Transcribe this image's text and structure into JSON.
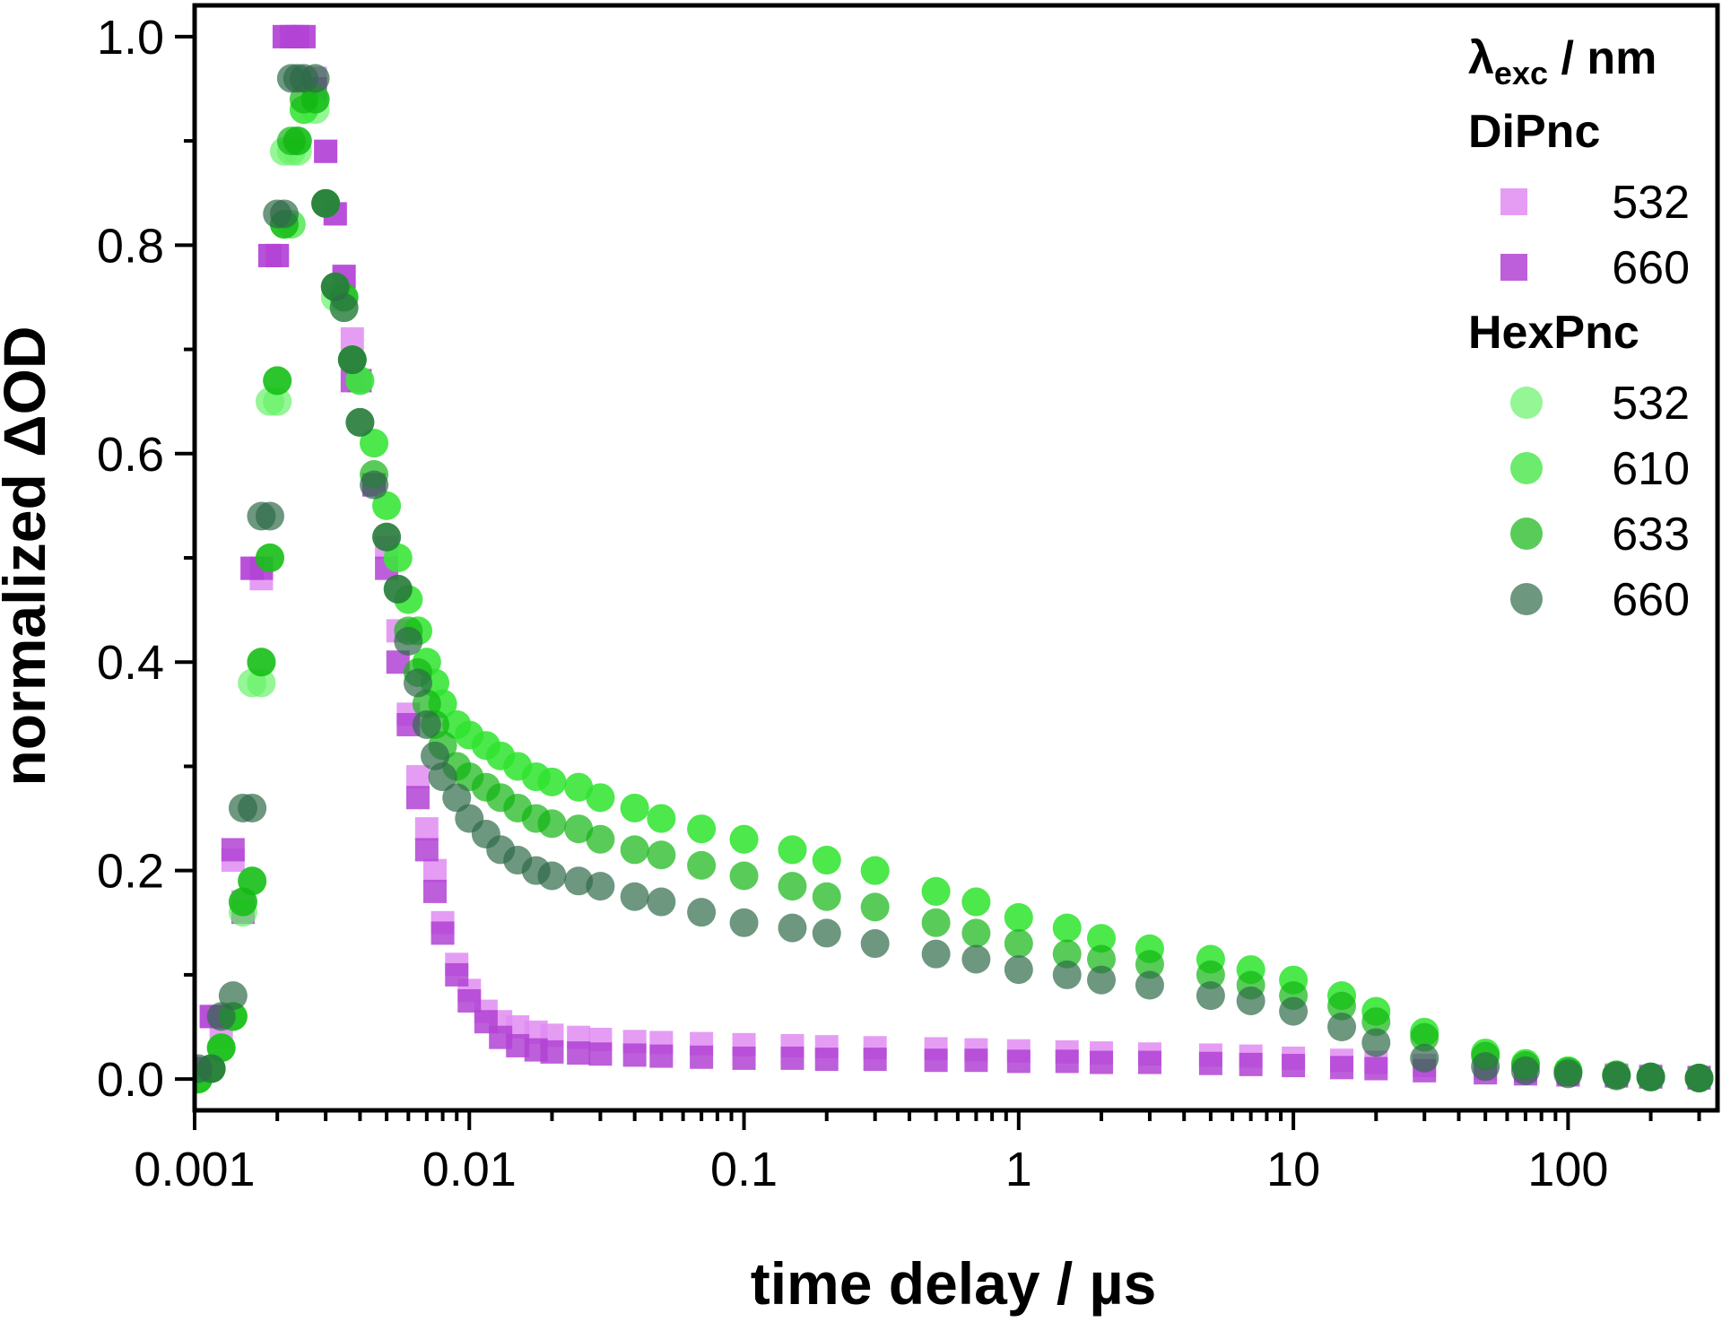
{
  "chart_data": {
    "type": "scatter",
    "xlabel": "time delay / µs",
    "ylabel": "normalized ΔOD",
    "x_scale": "log",
    "xlim": [
      0.001,
      350
    ],
    "ylim": [
      -0.03,
      1.03
    ],
    "x_ticks": [
      {
        "value": 0.001,
        "label": "0.001"
      },
      {
        "value": 0.01,
        "label": "0.01"
      },
      {
        "value": 0.1,
        "label": "0.1"
      },
      {
        "value": 1,
        "label": "1"
      },
      {
        "value": 10,
        "label": "10"
      },
      {
        "value": 100,
        "label": "100"
      }
    ],
    "y_ticks": [
      {
        "value": 0.0,
        "label": "0.0"
      },
      {
        "value": 0.2,
        "label": "0.2"
      },
      {
        "value": 0.4,
        "label": "0.4"
      },
      {
        "value": 0.6,
        "label": "0.6"
      },
      {
        "value": 0.8,
        "label": "0.8"
      },
      {
        "value": 1.0,
        "label": "1.0"
      }
    ],
    "legend": {
      "title_main": "λ",
      "title_sub": "exc",
      "title_rest": " / nm",
      "placement": "top-right",
      "groups": [
        {
          "name": "DiPnc",
          "series_index": [
            0,
            1
          ]
        },
        {
          "name": "HexPnc",
          "series_index": [
            2,
            3,
            4,
            5
          ]
        }
      ]
    },
    "series": [
      {
        "name": "532",
        "group": "DiPnc",
        "marker": "square",
        "color": "#e08cf2",
        "x": [
          0.00103,
          0.00115,
          0.00125,
          0.00138,
          0.0015,
          0.00162,
          0.00175,
          0.00188,
          0.002,
          0.00212,
          0.00225,
          0.00237,
          0.0025,
          0.00275,
          0.003,
          0.00325,
          0.0035,
          0.00375,
          0.004,
          0.0045,
          0.005,
          0.0055,
          0.006,
          0.0065,
          0.007,
          0.0075,
          0.008,
          0.009,
          0.01,
          0.0115,
          0.013,
          0.015,
          0.0175,
          0.02,
          0.025,
          0.03,
          0.04,
          0.05,
          0.07,
          0.1,
          0.15,
          0.2,
          0.3,
          0.5,
          0.7,
          1.0,
          1.5,
          2.0,
          3.0,
          5.0,
          7.0,
          10.0,
          15.0,
          20.0,
          30.0,
          50.0,
          70.0,
          100,
          150,
          200,
          300
        ],
        "y": [
          0.01,
          0.06,
          0.04,
          0.21,
          0.17,
          0.49,
          0.48,
          0.79,
          0.79,
          1.0,
          1.0,
          1.0,
          1.0,
          0.96,
          0.89,
          0.83,
          0.77,
          0.71,
          0.67,
          0.57,
          0.51,
          0.43,
          0.35,
          0.29,
          0.24,
          0.2,
          0.15,
          0.11,
          0.085,
          0.065,
          0.055,
          0.05,
          0.045,
          0.042,
          0.04,
          0.038,
          0.036,
          0.035,
          0.034,
          0.033,
          0.032,
          0.031,
          0.03,
          0.029,
          0.028,
          0.027,
          0.026,
          0.025,
          0.024,
          0.023,
          0.022,
          0.02,
          0.018,
          0.016,
          0.013,
          0.01,
          0.008,
          0.006,
          0.004,
          0.003,
          0.002
        ]
      },
      {
        "name": "660",
        "group": "DiPnc",
        "marker": "square",
        "color": "#b243d4",
        "x": [
          0.00103,
          0.00115,
          0.00125,
          0.00138,
          0.0015,
          0.00162,
          0.00175,
          0.00188,
          0.002,
          0.00212,
          0.00225,
          0.00237,
          0.0025,
          0.00275,
          0.003,
          0.00325,
          0.0035,
          0.00375,
          0.004,
          0.0045,
          0.005,
          0.0055,
          0.006,
          0.0065,
          0.007,
          0.0075,
          0.008,
          0.009,
          0.01,
          0.0115,
          0.013,
          0.015,
          0.0175,
          0.02,
          0.025,
          0.03,
          0.04,
          0.05,
          0.07,
          0.1,
          0.15,
          0.2,
          0.3,
          0.5,
          0.7,
          1.0,
          1.5,
          2.0,
          3.0,
          5.0,
          7.0,
          10.0,
          15.0,
          20.0,
          30.0,
          50.0,
          70.0,
          100,
          150,
          200,
          300
        ],
        "y": [
          0.01,
          0.06,
          0.06,
          0.22,
          0.16,
          0.49,
          0.49,
          0.79,
          0.79,
          1.0,
          1.0,
          1.0,
          1.0,
          0.95,
          0.89,
          0.83,
          0.77,
          0.67,
          0.67,
          0.57,
          0.49,
          0.4,
          0.34,
          0.27,
          0.22,
          0.18,
          0.14,
          0.1,
          0.075,
          0.055,
          0.04,
          0.032,
          0.028,
          0.026,
          0.025,
          0.024,
          0.023,
          0.022,
          0.021,
          0.02,
          0.02,
          0.019,
          0.019,
          0.018,
          0.018,
          0.017,
          0.017,
          0.016,
          0.016,
          0.015,
          0.014,
          0.013,
          0.011,
          0.01,
          0.008,
          0.006,
          0.005,
          0.004,
          0.003,
          0.002,
          0.001
        ]
      },
      {
        "name": "532",
        "group": "HexPnc",
        "marker": "circle",
        "color": "#66f266",
        "x": [
          0.00103,
          0.00115,
          0.00125,
          0.00138,
          0.0015,
          0.00162,
          0.00175,
          0.00188,
          0.002,
          0.00212,
          0.00225,
          0.00237,
          0.0025,
          0.00275,
          0.003,
          0.00325,
          0.0035,
          0.00375,
          0.004,
          0.0045,
          0.005,
          0.0055,
          0.006,
          0.0065,
          0.007,
          0.0075,
          0.008,
          0.009,
          0.01,
          0.0115,
          0.013,
          0.015,
          0.0175,
          0.02,
          0.025,
          0.03,
          0.04,
          0.05,
          0.07,
          0.1,
          0.15,
          0.2,
          0.3,
          0.5,
          0.7,
          1.0,
          1.5,
          2.0,
          3.0,
          5.0,
          7.0,
          10.0,
          15.0,
          20.0,
          30.0,
          50.0,
          70.0,
          100,
          150,
          200,
          300
        ],
        "y": [
          0.0,
          0.01,
          0.03,
          0.06,
          0.16,
          0.38,
          0.38,
          0.65,
          0.65,
          0.89,
          0.89,
          0.89,
          0.93,
          0.93,
          0.84,
          0.75,
          0.74,
          0.69,
          0.67,
          0.61,
          0.55,
          0.5,
          0.46,
          0.43,
          0.4,
          0.38,
          0.36,
          0.34,
          0.33,
          0.32,
          0.31,
          0.3,
          0.29,
          0.285,
          0.28,
          0.27,
          0.26,
          0.25,
          0.24,
          0.23,
          0.22,
          0.21,
          0.2,
          0.18,
          0.17,
          0.155,
          0.145,
          0.135,
          0.125,
          0.115,
          0.105,
          0.095,
          0.08,
          0.065,
          0.045,
          0.025,
          0.015,
          0.008,
          0.004,
          0.002,
          0.001
        ]
      },
      {
        "name": "610",
        "group": "HexPnc",
        "marker": "circle",
        "color": "#2ee32e",
        "x": [
          0.00103,
          0.00115,
          0.00125,
          0.00138,
          0.0015,
          0.00162,
          0.00175,
          0.00188,
          0.002,
          0.00212,
          0.00225,
          0.00237,
          0.0025,
          0.00275,
          0.003,
          0.00325,
          0.0035,
          0.00375,
          0.004,
          0.0045,
          0.005,
          0.0055,
          0.006,
          0.0065,
          0.007,
          0.0075,
          0.008,
          0.009,
          0.01,
          0.0115,
          0.013,
          0.015,
          0.0175,
          0.02,
          0.025,
          0.03,
          0.04,
          0.05,
          0.07,
          0.1,
          0.15,
          0.2,
          0.3,
          0.5,
          0.7,
          1.0,
          1.5,
          2.0,
          3.0,
          5.0,
          7.0,
          10.0,
          15.0,
          20.0,
          30.0,
          50.0,
          70.0,
          100,
          150,
          200,
          300
        ],
        "y": [
          0.0,
          0.01,
          0.03,
          0.06,
          0.17,
          0.19,
          0.4,
          0.5,
          0.67,
          0.82,
          0.82,
          0.9,
          0.93,
          0.94,
          0.84,
          0.76,
          0.75,
          0.69,
          0.67,
          0.61,
          0.55,
          0.5,
          0.46,
          0.43,
          0.4,
          0.38,
          0.36,
          0.34,
          0.33,
          0.32,
          0.31,
          0.3,
          0.29,
          0.285,
          0.28,
          0.27,
          0.26,
          0.25,
          0.24,
          0.23,
          0.22,
          0.21,
          0.2,
          0.18,
          0.17,
          0.155,
          0.145,
          0.135,
          0.125,
          0.115,
          0.105,
          0.095,
          0.08,
          0.065,
          0.045,
          0.025,
          0.015,
          0.008,
          0.004,
          0.002,
          0.001
        ]
      },
      {
        "name": "633",
        "group": "HexPnc",
        "marker": "circle",
        "color": "#12b512",
        "x": [
          0.00103,
          0.00115,
          0.00125,
          0.00138,
          0.0015,
          0.00162,
          0.00175,
          0.00188,
          0.002,
          0.00212,
          0.00225,
          0.00237,
          0.0025,
          0.00275,
          0.003,
          0.00325,
          0.0035,
          0.00375,
          0.004,
          0.0045,
          0.005,
          0.0055,
          0.006,
          0.0065,
          0.007,
          0.0075,
          0.008,
          0.009,
          0.01,
          0.0115,
          0.013,
          0.015,
          0.0175,
          0.02,
          0.025,
          0.03,
          0.04,
          0.05,
          0.07,
          0.1,
          0.15,
          0.2,
          0.3,
          0.5,
          0.7,
          1.0,
          1.5,
          2.0,
          3.0,
          5.0,
          7.0,
          10.0,
          15.0,
          20.0,
          30.0,
          50.0,
          70.0,
          100,
          150,
          200,
          300
        ],
        "y": [
          0.0,
          0.01,
          0.03,
          0.06,
          0.17,
          0.19,
          0.4,
          0.5,
          0.67,
          0.82,
          0.9,
          0.9,
          0.94,
          0.94,
          0.84,
          0.76,
          0.75,
          0.69,
          0.63,
          0.58,
          0.52,
          0.47,
          0.43,
          0.39,
          0.36,
          0.34,
          0.32,
          0.3,
          0.29,
          0.28,
          0.27,
          0.26,
          0.25,
          0.245,
          0.24,
          0.23,
          0.22,
          0.215,
          0.205,
          0.195,
          0.185,
          0.175,
          0.165,
          0.15,
          0.14,
          0.13,
          0.12,
          0.115,
          0.11,
          0.1,
          0.09,
          0.08,
          0.07,
          0.055,
          0.04,
          0.022,
          0.013,
          0.007,
          0.004,
          0.002,
          0.001
        ]
      },
      {
        "name": "660",
        "group": "HexPnc",
        "marker": "circle",
        "color": "#2f6b48",
        "x": [
          0.00103,
          0.00115,
          0.00125,
          0.00138,
          0.0015,
          0.00162,
          0.00175,
          0.00188,
          0.002,
          0.00212,
          0.00225,
          0.00237,
          0.0025,
          0.00275,
          0.003,
          0.00325,
          0.0035,
          0.00375,
          0.004,
          0.0045,
          0.005,
          0.0055,
          0.006,
          0.0065,
          0.007,
          0.0075,
          0.008,
          0.009,
          0.01,
          0.0115,
          0.013,
          0.015,
          0.0175,
          0.02,
          0.025,
          0.03,
          0.04,
          0.05,
          0.07,
          0.1,
          0.15,
          0.2,
          0.3,
          0.5,
          0.7,
          1.0,
          1.5,
          2.0,
          3.0,
          5.0,
          7.0,
          10.0,
          15.0,
          20.0,
          30.0,
          50.0,
          70.0,
          100,
          150,
          200,
          300
        ],
        "y": [
          0.01,
          0.01,
          0.06,
          0.08,
          0.26,
          0.26,
          0.54,
          0.54,
          0.83,
          0.83,
          0.96,
          0.96,
          0.96,
          0.96,
          0.84,
          0.76,
          0.74,
          0.69,
          0.63,
          0.57,
          0.52,
          0.47,
          0.42,
          0.38,
          0.34,
          0.31,
          0.29,
          0.27,
          0.25,
          0.235,
          0.22,
          0.21,
          0.2,
          0.195,
          0.19,
          0.185,
          0.175,
          0.17,
          0.16,
          0.15,
          0.145,
          0.14,
          0.13,
          0.12,
          0.115,
          0.105,
          0.1,
          0.095,
          0.09,
          0.08,
          0.075,
          0.065,
          0.05,
          0.035,
          0.02,
          0.012,
          0.008,
          0.005,
          0.003,
          0.002,
          0.001
        ]
      }
    ]
  }
}
